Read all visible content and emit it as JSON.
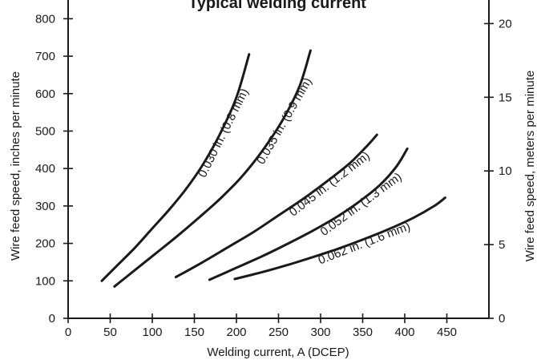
{
  "chart_data": {
    "type": "line",
    "title": "Typical welding current",
    "xlabel": "Welding current, A (DCEP)",
    "ylabel": "Wire feed speed, inches per minute",
    "y2label": "Wire feed speed, meters per minute",
    "xlim": [
      0,
      500
    ],
    "ylim": [
      0,
      850
    ],
    "y2lim": [
      0,
      21.6
    ],
    "x_ticks": [
      0,
      50,
      100,
      150,
      200,
      250,
      300,
      350,
      400,
      450
    ],
    "x_tick_labels": [
      "0",
      "50",
      "100",
      "150",
      "200",
      "250",
      "300",
      "350",
      "400",
      "450"
    ],
    "y_ticks": [
      0,
      100,
      200,
      300,
      400,
      500,
      600,
      700,
      800
    ],
    "y_tick_labels": [
      "0",
      "100",
      "200",
      "300",
      "400",
      "500",
      "600",
      "700",
      "800"
    ],
    "y2_ticks": [
      0,
      5,
      10,
      15,
      20
    ],
    "y2_tick_labels": [
      "0",
      "5",
      "10",
      "15",
      "20"
    ],
    "grid": false,
    "legend": "none (curves labeled directly)",
    "line_color": "#1a1a1a",
    "series": [
      {
        "name": "0.030 in. (0.8 mm)",
        "x": [
          40,
          60,
          80,
          100,
          120,
          140,
          160,
          180,
          200,
          215
        ],
        "y": [
          100,
          145,
          190,
          240,
          290,
          345,
          410,
          490,
          590,
          705
        ]
      },
      {
        "name": "0.035 in. (0.9 mm)",
        "x": [
          55,
          80,
          105,
          130,
          155,
          180,
          205,
          230,
          255,
          275,
          288
        ],
        "y": [
          85,
          130,
          175,
          220,
          268,
          318,
          375,
          445,
          530,
          620,
          715
        ]
      },
      {
        "name": "0.045 in. (1.2 mm)",
        "x": [
          128,
          160,
          190,
          220,
          250,
          280,
          310,
          335,
          355,
          367
        ],
        "y": [
          110,
          150,
          190,
          230,
          275,
          320,
          370,
          415,
          460,
          490
        ]
      },
      {
        "name": "0.052 in. (1.3 mm)",
        "x": [
          168,
          200,
          230,
          260,
          290,
          320,
          345,
          370,
          390,
          403
        ],
        "y": [
          103,
          135,
          165,
          198,
          233,
          272,
          310,
          355,
          405,
          453
        ]
      },
      {
        "name": "0.062 in. (1.6 mm)",
        "x": [
          198,
          230,
          260,
          290,
          320,
          350,
          380,
          410,
          435,
          448
        ],
        "y": [
          105,
          123,
          142,
          163,
          185,
          210,
          237,
          268,
          300,
          322
        ]
      }
    ]
  }
}
